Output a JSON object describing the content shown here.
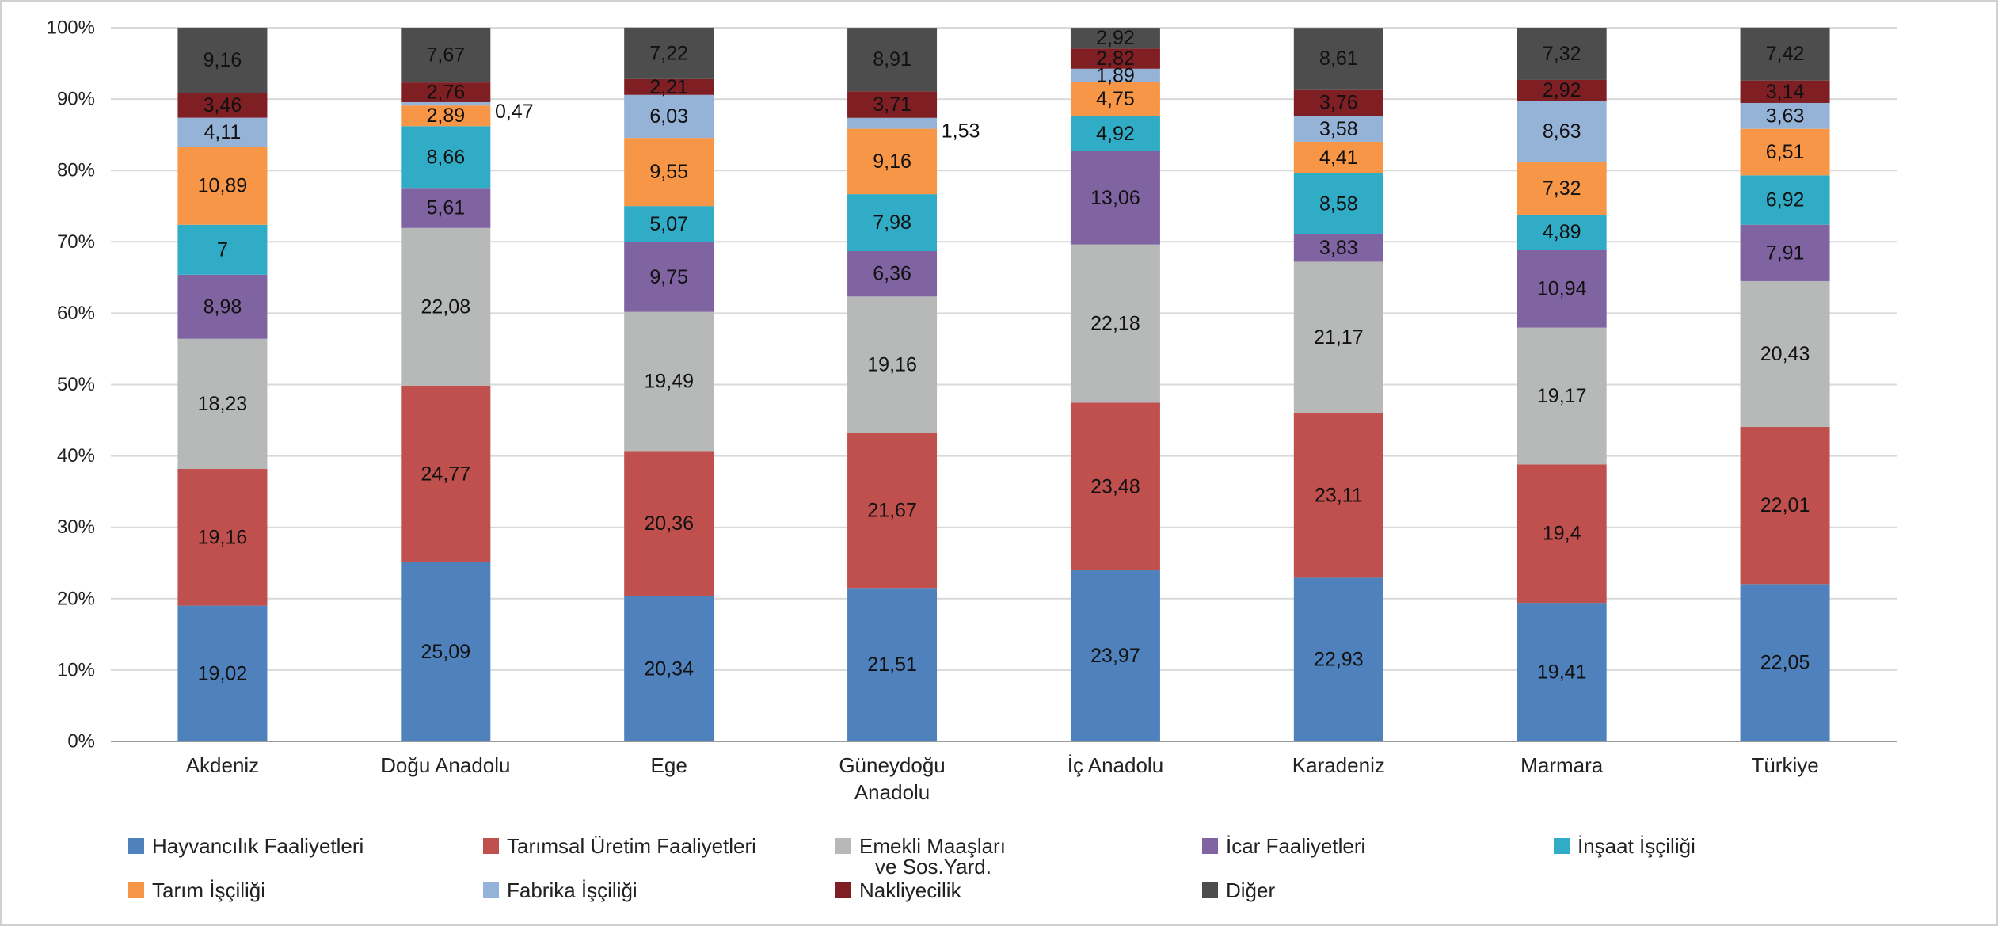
{
  "chart_data": {
    "type": "bar",
    "stacked": true,
    "percent_stacked": true,
    "title": "",
    "xlabel": "",
    "ylabel": "",
    "ylim": [
      0,
      100
    ],
    "y_ticks": [
      "0%",
      "10%",
      "20%",
      "30%",
      "40%",
      "50%",
      "60%",
      "70%",
      "80%",
      "90%",
      "100%"
    ],
    "grid": true,
    "legend_position": "bottom",
    "categories": [
      "Akdeniz",
      "Doğu Anadolu",
      "Ege",
      "Güneydoğu Anadolu",
      "İç Anadolu",
      "Karadeniz",
      "Marmara",
      "Türkiye"
    ],
    "series": [
      {
        "name": "Hayvancılık Faaliyetleri",
        "color": "#4f81bd",
        "values": [
          19.02,
          25.09,
          20.34,
          21.51,
          23.97,
          22.93,
          19.41,
          22.05
        ],
        "labels": [
          "19,02",
          "25,09",
          "20,34",
          "21,51",
          "23,97",
          "22,93",
          "19,41",
          "22,05"
        ]
      },
      {
        "name": "Tarımsal Üretim Faaliyetleri",
        "color": "#c0504d",
        "values": [
          19.16,
          24.77,
          20.36,
          21.67,
          23.48,
          23.11,
          19.4,
          22.01
        ],
        "labels": [
          "19,16",
          "24,77",
          "20,36",
          "21,67",
          "23,48",
          "23,11",
          "19,4",
          "22,01"
        ]
      },
      {
        "name": "Emekli Maaşları ve Sos.Yard.",
        "color": "#b7b9b9",
        "values": [
          18.23,
          22.08,
          19.49,
          19.16,
          22.18,
          21.17,
          19.17,
          20.43
        ],
        "labels": [
          "18,23",
          "22,08",
          "19,49",
          "19,16",
          "22,18",
          "21,17",
          "19,17",
          "20,43"
        ]
      },
      {
        "name": "İcar Faaliyetleri",
        "color": "#8064a2",
        "values": [
          8.98,
          5.61,
          9.75,
          6.36,
          13.06,
          3.83,
          10.94,
          7.91
        ],
        "labels": [
          "8,98",
          "5,61",
          "9,75",
          "6,36",
          "13,06",
          "3,83",
          "10,94",
          "7,91"
        ]
      },
      {
        "name": "İnşaat İşçiliği",
        "color": "#31acc6",
        "values": [
          7,
          8.66,
          5.07,
          7.98,
          4.92,
          8.58,
          4.89,
          6.92
        ],
        "labels": [
          "7",
          "8,66",
          "5,07",
          "7,98",
          "4,92",
          "8,58",
          "4,89",
          "6,92"
        ]
      },
      {
        "name": "Tarım İşçiliği",
        "color": "#f79646",
        "values": [
          10.89,
          2.89,
          9.55,
          9.16,
          4.75,
          4.41,
          7.32,
          6.51
        ],
        "labels": [
          "10,89",
          "2,89",
          "9,55",
          "9,16",
          "4,75",
          "4,41",
          "7,32",
          "6,51"
        ]
      },
      {
        "name": "Fabrika İşçiliği",
        "color": "#95b3d7",
        "values": [
          4.11,
          0.47,
          6.03,
          1.53,
          1.89,
          3.58,
          8.63,
          3.63
        ],
        "labels": [
          "4,11",
          "0,47",
          "6,03",
          "1,53",
          "1,89",
          "3,58",
          "8,63",
          "3,63"
        ]
      },
      {
        "name": "Nakliyecilik",
        "color": "#7f1f24",
        "values": [
          3.46,
          2.76,
          2.21,
          3.71,
          2.82,
          3.76,
          2.92,
          3.14
        ],
        "labels": [
          "3,46",
          "2,76",
          "2,21",
          "3,71",
          "2,82",
          "3,76",
          "2,92",
          "3,14"
        ]
      },
      {
        "name": "Diğer",
        "color": "#4d4d4d",
        "values": [
          9.16,
          7.67,
          7.22,
          8.91,
          2.92,
          8.61,
          7.32,
          7.42
        ],
        "labels": [
          "9,16",
          "7,67",
          "7,22",
          "8,91",
          "2,92",
          "8,61",
          "7,32",
          "7,42"
        ]
      }
    ]
  }
}
